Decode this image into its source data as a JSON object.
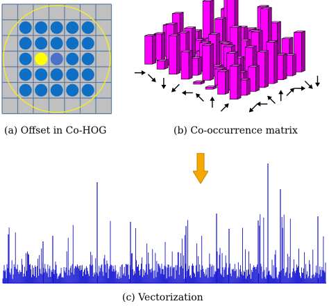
{
  "captions": {
    "a": "(a)  Offset in Co-HOG",
    "b": "(b)  Co-occurrence matrix",
    "c": "(c)  Vectorization"
  },
  "colors": {
    "grid_bg": "#c0c0c0",
    "grid_line": "#5b7aa6",
    "dot": "#0e6fc4",
    "center_dot": "#ffff00",
    "offset_dot": "#4a72c8",
    "circle": "#f2ea2e",
    "bar_face": "#ff00ff",
    "bar_dark": "#a000a0",
    "arrow": "#f5a800",
    "vector": "#1010d0"
  },
  "icons": {
    "down_arrow": "down-arrow-icon"
  }
}
